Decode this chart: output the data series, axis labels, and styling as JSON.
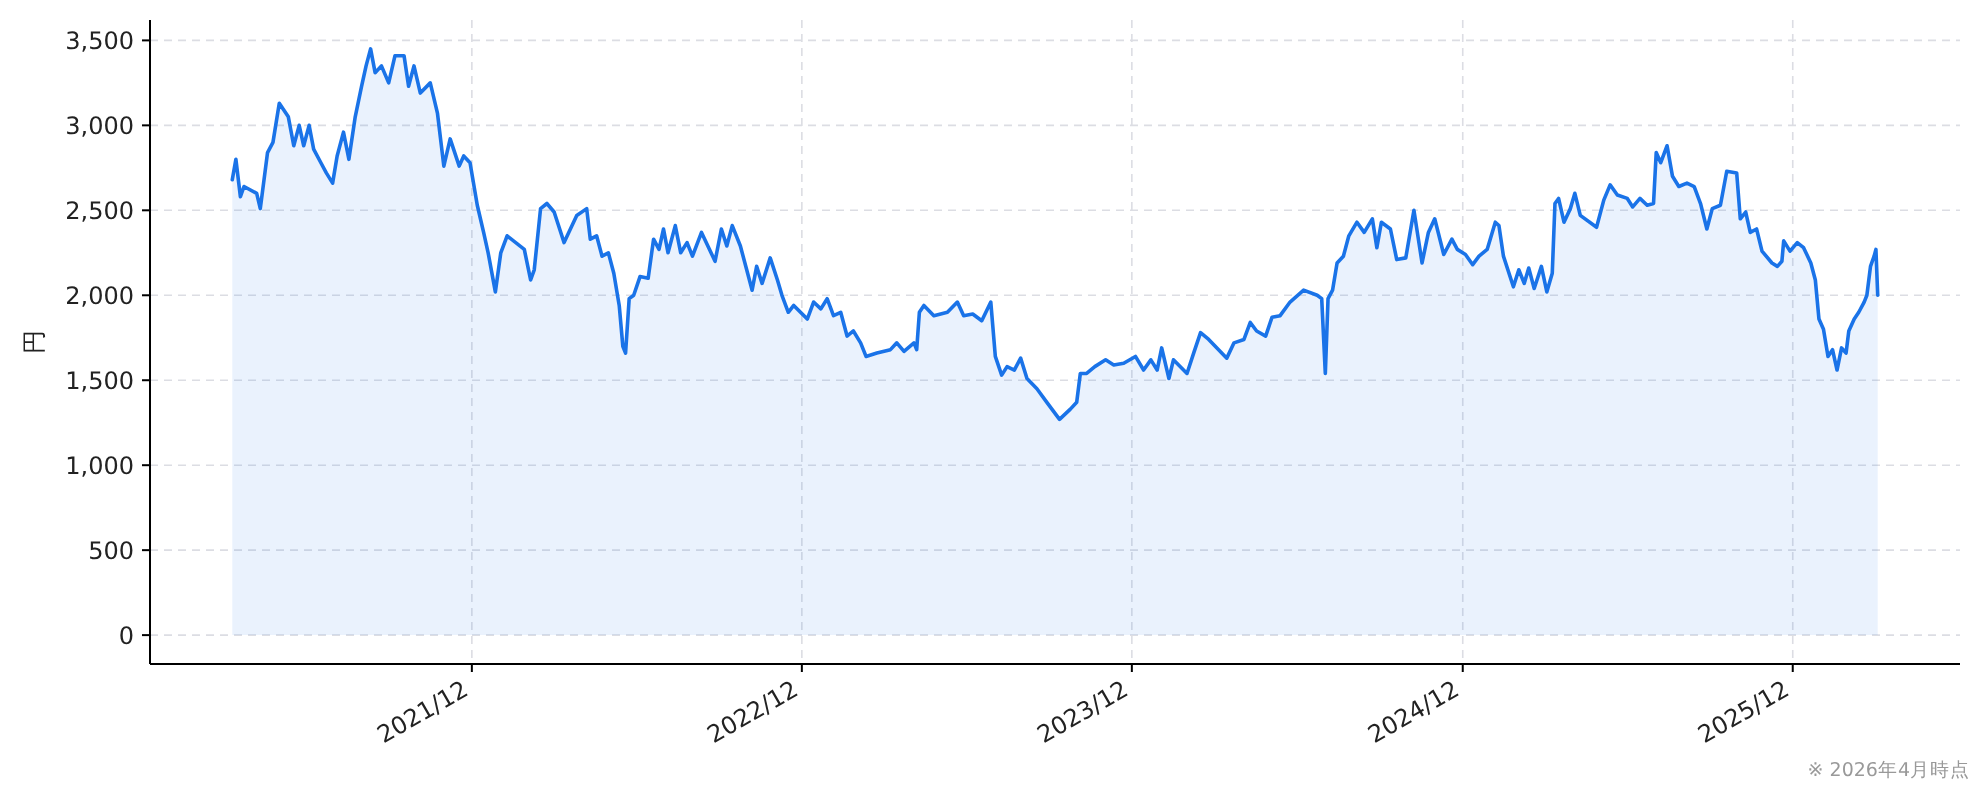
{
  "chart_data": {
    "type": "area",
    "ylabel": "円",
    "annotations": [
      "※ 2026年4月時点"
    ],
    "x": [
      "2021-03-11",
      "2021-03-15",
      "2021-03-20",
      "2021-03-24",
      "2021-04-07",
      "2021-04-11",
      "2021-04-19",
      "2021-04-25",
      "2021-05-02",
      "2021-05-12",
      "2021-05-18",
      "2021-05-24",
      "2021-05-29",
      "2021-06-04",
      "2021-06-09",
      "2021-06-17",
      "2021-06-23",
      "2021-06-30",
      "2021-07-05",
      "2021-07-12",
      "2021-07-18",
      "2021-07-25",
      "2021-08-01",
      "2021-08-06",
      "2021-08-11",
      "2021-08-16",
      "2021-08-23",
      "2021-08-31",
      "2021-09-07",
      "2021-09-17",
      "2021-09-22",
      "2021-09-28",
      "2021-10-05",
      "2021-10-16",
      "2021-10-24",
      "2021-10-31",
      "2021-11-07",
      "2021-11-17",
      "2021-11-22",
      "2021-11-29",
      "2021-12-07",
      "2021-12-14",
      "2021-12-19",
      "2021-12-27",
      "2022-01-02",
      "2022-01-09",
      "2022-01-28",
      "2022-02-04",
      "2022-02-08",
      "2022-02-15",
      "2022-02-22",
      "2022-03-02",
      "2022-03-13",
      "2022-03-20",
      "2022-03-27",
      "2022-04-07",
      "2022-04-11",
      "2022-04-18",
      "2022-04-24",
      "2022-05-01",
      "2022-05-07",
      "2022-05-13",
      "2022-05-17",
      "2022-05-20",
      "2022-05-24",
      "2022-05-29",
      "2022-06-05",
      "2022-06-14",
      "2022-06-20",
      "2022-06-26",
      "2022-07-01",
      "2022-07-06",
      "2022-07-14",
      "2022-07-20",
      "2022-07-27",
      "2022-08-02",
      "2022-08-12",
      "2022-08-27",
      "2022-09-03",
      "2022-09-09",
      "2022-09-15",
      "2022-09-24",
      "2022-10-01",
      "2022-10-07",
      "2022-10-12",
      "2022-10-18",
      "2022-10-27",
      "2022-11-04",
      "2022-11-09",
      "2022-11-16",
      "2022-11-22",
      "2022-12-07",
      "2022-12-14",
      "2022-12-22",
      "2022-12-29",
      "2023-01-05",
      "2023-01-13",
      "2023-01-20",
      "2023-01-27",
      "2023-02-04",
      "2023-02-10",
      "2023-02-22",
      "2023-03-09",
      "2023-03-16",
      "2023-03-24",
      "2023-04-04",
      "2023-04-07",
      "2023-04-10",
      "2023-04-15",
      "2023-04-26",
      "2023-05-11",
      "2023-05-22",
      "2023-05-29",
      "2023-06-08",
      "2023-06-18",
      "2023-06-28",
      "2023-07-03",
      "2023-07-10",
      "2023-07-16",
      "2023-07-24",
      "2023-07-31",
      "2023-08-07",
      "2023-08-18",
      "2023-08-29",
      "2023-09-12",
      "2023-09-24",
      "2023-10-01",
      "2023-10-05",
      "2023-10-12",
      "2023-10-21",
      "2023-11-02",
      "2023-11-11",
      "2023-11-22",
      "2023-12-05",
      "2023-12-14",
      "2023-12-22",
      "2023-12-29",
      "2024-01-03",
      "2024-01-11",
      "2024-01-16",
      "2024-01-31",
      "2024-02-08",
      "2024-02-15",
      "2024-02-24",
      "2024-03-15",
      "2024-03-23",
      "2024-04-03",
      "2024-04-10",
      "2024-04-17",
      "2024-04-27",
      "2024-05-04",
      "2024-05-13",
      "2024-05-24",
      "2024-06-08",
      "2024-06-23",
      "2024-06-28",
      "2024-07-02",
      "2024-07-05",
      "2024-07-10",
      "2024-07-15",
      "2024-07-22",
      "2024-07-28",
      "2024-08-06",
      "2024-08-14",
      "2024-08-23",
      "2024-08-28",
      "2024-09-02",
      "2024-09-12",
      "2024-09-19",
      "2024-09-29",
      "2024-10-08",
      "2024-10-17",
      "2024-10-24",
      "2024-10-31",
      "2024-11-10",
      "2024-11-19",
      "2024-11-25",
      "2024-12-04",
      "2024-12-12",
      "2024-12-19",
      "2024-12-28",
      "2025-01-06",
      "2025-01-10",
      "2025-01-15",
      "2025-01-26",
      "2025-02-01",
      "2025-02-07",
      "2025-02-12",
      "2025-02-18",
      "2025-02-26",
      "2025-03-04",
      "2025-03-10",
      "2025-03-13",
      "2025-03-17",
      "2025-03-23",
      "2025-03-30",
      "2025-04-04",
      "2025-04-10",
      "2025-04-28",
      "2025-05-06",
      "2025-05-13",
      "2025-05-21",
      "2025-06-01",
      "2025-06-07",
      "2025-06-15",
      "2025-06-23",
      "2025-06-30",
      "2025-07-03",
      "2025-07-08",
      "2025-07-15",
      "2025-07-21",
      "2025-07-28",
      "2025-08-06",
      "2025-08-14",
      "2025-08-21",
      "2025-08-28",
      "2025-09-03",
      "2025-09-12",
      "2025-09-19",
      "2025-09-30",
      "2025-10-04",
      "2025-10-10",
      "2025-10-15",
      "2025-10-22",
      "2025-10-28",
      "2025-11-08",
      "2025-11-14",
      "2025-11-19",
      "2025-11-21",
      "2025-11-28",
      "2025-12-06",
      "2025-12-13",
      "2025-12-21",
      "2025-12-26",
      "2025-12-30",
      "2026-01-04",
      "2026-01-09",
      "2026-01-14",
      "2026-01-19",
      "2026-01-24",
      "2026-01-29",
      "2026-02-01",
      "2026-02-07",
      "2026-02-12",
      "2026-02-18",
      "2026-02-21",
      "2026-02-25",
      "2026-03-01",
      "2026-03-03",
      "2026-03-05"
    ],
    "values": [
      2680,
      2800,
      2580,
      2640,
      2600,
      2510,
      2840,
      2900,
      3130,
      3050,
      2880,
      3000,
      2880,
      3000,
      2860,
      2780,
      2720,
      2660,
      2820,
      2960,
      2800,
      3050,
      3230,
      3350,
      3450,
      3310,
      3350,
      3250,
      3410,
      3410,
      3230,
      3350,
      3190,
      3250,
      3070,
      2760,
      2920,
      2760,
      2820,
      2780,
      2530,
      2370,
      2250,
      2020,
      2250,
      2350,
      2270,
      2090,
      2150,
      2510,
      2540,
      2490,
      2310,
      2390,
      2470,
      2510,
      2330,
      2350,
      2230,
      2250,
      2130,
      1940,
      1700,
      1660,
      1980,
      2000,
      2110,
      2100,
      2330,
      2270,
      2390,
      2250,
      2410,
      2250,
      2310,
      2230,
      2370,
      2200,
      2390,
      2290,
      2410,
      2290,
      2150,
      2030,
      2170,
      2070,
      2220,
      2090,
      2000,
      1900,
      1940,
      1860,
      1960,
      1920,
      1980,
      1880,
      1900,
      1760,
      1790,
      1720,
      1640,
      1660,
      1680,
      1720,
      1670,
      1720,
      1680,
      1900,
      1940,
      1880,
      1900,
      1960,
      1880,
      1890,
      1850,
      1960,
      1640,
      1530,
      1580,
      1560,
      1630,
      1510,
      1450,
      1370,
      1270,
      1330,
      1370,
      1540,
      1540,
      1580,
      1620,
      1590,
      1600,
      1640,
      1560,
      1620,
      1560,
      1690,
      1510,
      1620,
      1540,
      1670,
      1780,
      1740,
      1630,
      1720,
      1740,
      1840,
      1790,
      1760,
      1870,
      1880,
      1960,
      2030,
      2000,
      1980,
      1540,
      1980,
      2030,
      2190,
      2230,
      2350,
      2430,
      2370,
      2450,
      2280,
      2430,
      2390,
      2210,
      2220,
      2500,
      2190,
      2370,
      2450,
      2240,
      2330,
      2270,
      2240,
      2180,
      2230,
      2270,
      2430,
      2410,
      2230,
      2050,
      2150,
      2070,
      2160,
      2040,
      2170,
      2020,
      2130,
      2540,
      2570,
      2430,
      2510,
      2600,
      2470,
      2400,
      2560,
      2650,
      2590,
      2570,
      2520,
      2570,
      2530,
      2540,
      2840,
      2780,
      2880,
      2700,
      2640,
      2660,
      2640,
      2540,
      2390,
      2510,
      2530,
      2730,
      2720,
      2450,
      2490,
      2370,
      2390,
      2260,
      2190,
      2170,
      2200,
      2320,
      2260,
      2310,
      2280,
      2190,
      2090,
      1860,
      1800,
      1640,
      1680,
      1560,
      1690,
      1660,
      1790,
      1860,
      1900,
      1960,
      2000,
      2170,
      2230,
      2270,
      2000
    ],
    "color": "#1a73e8",
    "xlim": [
      "2020-12-10",
      "2026-06-04"
    ],
    "ylim": [
      -170,
      3620
    ],
    "xticks": [
      {
        "value": "2021-12-01",
        "label": "2021/12"
      },
      {
        "value": "2022-12-01",
        "label": "2022/12"
      },
      {
        "value": "2023-12-01",
        "label": "2023/12"
      },
      {
        "value": "2024-12-01",
        "label": "2024/12"
      },
      {
        "value": "2025-12-01",
        "label": "2025/12"
      }
    ],
    "yticks": [
      0,
      500,
      {
        "value": 1000,
        "label": "1,000"
      },
      {
        "value": 1500,
        "label": "1,500"
      },
      {
        "value": 2000,
        "label": "2,000"
      },
      {
        "value": 2500,
        "label": "2,500"
      },
      {
        "value": 3000,
        "label": "3,000"
      },
      {
        "value": 3500,
        "label": "3,500"
      }
    ],
    "grid": true,
    "line_style": "solid"
  }
}
